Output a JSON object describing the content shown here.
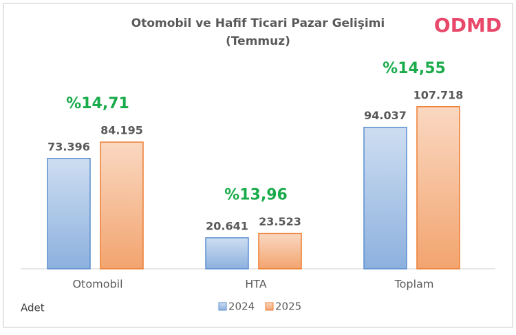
{
  "chart_data": {
    "type": "bar",
    "title": "Otomobil ve Hafif Ticari Pazar Gelişimi",
    "subtitle": "(Temmuz)",
    "logo": "ODMD",
    "unit_label": "Adet",
    "categories": [
      "Otomobil",
      "HTA",
      "Toplam"
    ],
    "series": [
      {
        "name": "2024",
        "color": "#5b8fd0",
        "values": [
          73396,
          20641,
          94037
        ],
        "value_labels": [
          "73.396",
          "20.641",
          "94.037"
        ]
      },
      {
        "name": "2025",
        "color": "#ed7d31",
        "values": [
          84195,
          23523,
          107718
        ],
        "value_labels": [
          "84.195",
          "23.523",
          "107.718"
        ]
      }
    ],
    "annotations": [
      "%14,71",
      "%13,96",
      "%14,55"
    ],
    "annotation_color": "#1aab4b",
    "ylim": [
      0,
      120000
    ]
  }
}
